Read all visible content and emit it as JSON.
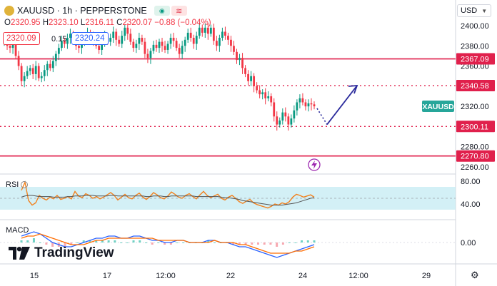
{
  "header": {
    "title": "XAUUSD · 1h · PEPPERSTONE",
    "status_green": "◉",
    "status_red": "≋"
  },
  "ohlc": {
    "o_label": "O",
    "o": "2320.95",
    "h_label": "H",
    "h": "2323.10",
    "l_label": "L",
    "l": "2316.11",
    "c_label": "C",
    "c": "2320.07",
    "change": "−0.88 (−0.04%)"
  },
  "sell_price": "2320.09",
  "spread": "0.15",
  "buy_price": "2320.24",
  "currency_button": "USD",
  "logo_text": "TradingView",
  "indicators": {
    "rsi_label": "RSI",
    "macd_label": "MACD"
  },
  "colors": {
    "up": "#089981",
    "down": "#f23645",
    "level_line": "#e0204c",
    "arrow": "#2a2a9c",
    "rsi": "#f2811d",
    "rsi_band": "#c8ecf4",
    "macd_line": "#2962ff",
    "signal_line": "#ff6d00",
    "hist": "#6fd1c4"
  },
  "chart_data": {
    "type": "candlestick",
    "symbol": "XAUUSD",
    "timeframe": "1h",
    "y_axis": {
      "ticks": [
        2260,
        2280,
        2300,
        2320,
        2340,
        2360,
        2380,
        2400
      ]
    },
    "x_axis": {
      "ticks": [
        "15",
        "17",
        "12:00",
        "22",
        "24",
        "12:00",
        "29"
      ]
    },
    "levels": [
      {
        "value": 2367.09,
        "label": "2367.09",
        "style": "solid"
      },
      {
        "value": 2340.58,
        "label": "2340.58",
        "style": "dotted"
      },
      {
        "value": 2300.11,
        "label": "2300.11",
        "style": "dotted"
      },
      {
        "value": 2270.8,
        "label": "2270.80",
        "style": "solid"
      }
    ],
    "current_price_label": "XAUUSD",
    "current_price": 2320.07,
    "closes": [
      2385,
      2380,
      2378,
      2382,
      2370,
      2360,
      2345,
      2350,
      2355,
      2358,
      2352,
      2360,
      2348,
      2350,
      2356,
      2362,
      2358,
      2365,
      2372,
      2378,
      2385,
      2382,
      2388,
      2392,
      2385,
      2380,
      2378,
      2383,
      2389,
      2393,
      2390,
      2386,
      2380,
      2376,
      2385,
      2390,
      2384,
      2388,
      2394,
      2386,
      2382,
      2390,
      2398,
      2392,
      2384,
      2378,
      2382,
      2388,
      2384,
      2372,
      2368,
      2375,
      2381,
      2378,
      2384,
      2380,
      2376,
      2382,
      2388,
      2385,
      2378,
      2372,
      2380,
      2386,
      2393,
      2388,
      2382,
      2390,
      2398,
      2393,
      2398,
      2392,
      2398,
      2385,
      2380,
      2388,
      2394,
      2390,
      2386,
      2380,
      2374,
      2366,
      2368,
      2358,
      2352,
      2345,
      2350,
      2340,
      2336,
      2332,
      2334,
      2328,
      2330,
      2324,
      2310,
      2302,
      2306,
      2314,
      2310,
      2302,
      2308,
      2316,
      2324,
      2328,
      2324,
      2320,
      2323,
      2322,
      2320.07
    ],
    "projection": [
      {
        "from": 2318,
        "to": 2302,
        "style": "dotted"
      },
      {
        "from": 2302,
        "to": 2340.58,
        "style": "arrow"
      }
    ],
    "rsi": {
      "ticks": [
        80,
        40
      ],
      "band": [
        70,
        30
      ],
      "values": [
        64,
        78,
        46,
        38,
        42,
        55,
        50,
        47,
        52,
        49,
        55,
        48,
        50,
        53,
        49,
        62,
        54,
        51,
        58,
        55,
        50,
        53,
        49,
        52,
        56,
        60,
        55,
        47,
        52,
        57,
        51,
        49,
        55,
        59,
        52,
        48,
        53,
        60,
        56,
        51,
        49,
        54,
        61,
        57,
        52,
        50,
        55,
        58,
        53,
        49,
        56,
        62,
        55,
        51,
        54,
        57,
        50,
        47,
        52,
        55,
        50,
        44,
        41,
        45,
        48,
        42,
        39,
        37,
        35,
        33,
        36,
        40,
        38,
        42,
        40,
        44,
        52,
        57,
        55,
        52,
        54,
        56,
        52
      ],
      "ma": [
        52,
        54,
        55,
        55,
        54,
        53,
        53,
        53,
        53,
        52,
        52,
        52,
        52,
        53,
        53,
        54,
        54,
        54,
        55,
        55,
        55,
        54,
        54,
        54,
        54,
        55,
        55,
        54,
        54,
        54,
        54,
        54,
        54,
        54,
        54,
        53,
        53,
        54,
        54,
        54,
        53,
        53,
        54,
        54,
        54,
        54,
        54,
        54,
        54,
        53,
        53,
        53,
        53,
        53,
        53,
        53,
        52,
        51,
        51,
        50,
        49,
        48,
        46,
        45,
        44,
        43,
        42,
        41,
        40,
        39,
        38,
        38,
        38,
        38,
        39,
        40,
        41,
        42,
        44,
        46,
        48,
        50,
        51
      ]
    },
    "macd": {
      "tick": "0.00",
      "macd_line": [
        3,
        4,
        5,
        4,
        2,
        0,
        -1,
        -2,
        -2,
        -1,
        0,
        1,
        2,
        2,
        3,
        3,
        2,
        2,
        3,
        3,
        2,
        1,
        1,
        0,
        0,
        1,
        1,
        0,
        0,
        0,
        1,
        1,
        0,
        0,
        -1,
        -2,
        -2,
        -3,
        -4,
        -5,
        -6,
        -7,
        -6,
        -5,
        -4,
        -3,
        -2,
        -1
      ],
      "signal_line": [
        2,
        3,
        3,
        4,
        3,
        2,
        1,
        0,
        -1,
        -1,
        -1,
        0,
        1,
        1,
        2,
        2,
        2,
        2,
        2,
        2,
        2,
        2,
        1,
        1,
        1,
        1,
        1,
        0,
        0,
        0,
        0,
        1,
        0,
        0,
        0,
        -1,
        -1,
        -2,
        -3,
        -4,
        -5,
        -5,
        -5,
        -5,
        -4,
        -4,
        -3,
        -2
      ]
    }
  }
}
